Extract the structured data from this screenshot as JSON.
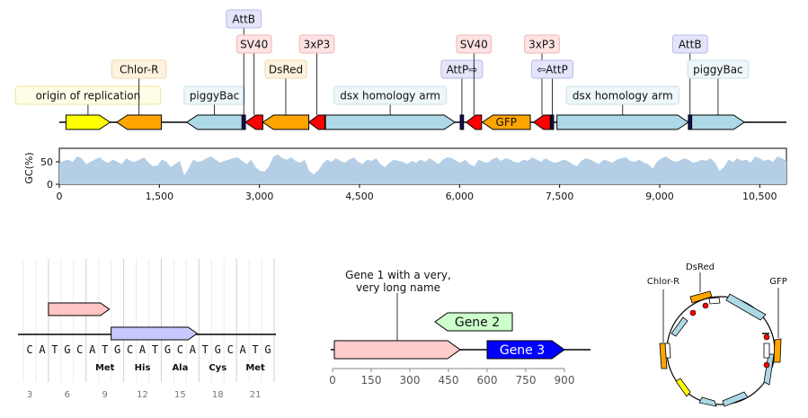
{
  "top_map": {
    "features": [
      {
        "label": "origin of replication",
        "start": 100,
        "end": 760,
        "dir": 1,
        "color": "#ffff00",
        "box_bg": "#fffde6",
        "box_stroke": "#f0e6a0",
        "level": 0
      },
      {
        "label": "Chlor-R",
        "start": 860,
        "end": 1530,
        "dir": -1,
        "color": "#ffa500",
        "box_bg": "#fff3df",
        "box_stroke": "#f0d7a8",
        "level": 1
      },
      {
        "label": "piggyBac",
        "start": 1910,
        "end": 2740,
        "dir": -1,
        "color": "#add8e6",
        "box_bg": "#eef7fa",
        "box_stroke": "#c8e2ea",
        "level": 0
      },
      {
        "label": "AttB",
        "start": 2740,
        "end": 2790,
        "dir": 0,
        "color": "#101060",
        "box_bg": "#e4e4fb",
        "box_stroke": "#b9b9e8",
        "level": 4
      },
      {
        "label": "SV40",
        "start": 2790,
        "end": 3050,
        "dir": -1,
        "color": "#ff0000",
        "box_bg": "#fde3e3",
        "box_stroke": "#f0b7b7",
        "level": 3
      },
      {
        "label": "DsRed",
        "start": 3050,
        "end": 3740,
        "dir": -1,
        "color": "#ffa500",
        "box_bg": "#fff3df",
        "box_stroke": "#f0d7a8",
        "level": 1
      },
      {
        "label": "3xP3",
        "start": 3740,
        "end": 3980,
        "dir": -1,
        "color": "#ff0000",
        "box_bg": "#fde3e3",
        "box_stroke": "#f0b7b7",
        "level": 3
      },
      {
        "label": "dsx homology arm",
        "start": 3990,
        "end": 5930,
        "dir": 1,
        "color": "#add8e6",
        "box_bg": "#eef7fa",
        "box_stroke": "#c8e2ea",
        "level": 0
      },
      {
        "label": "AttP⇨",
        "start": 6010,
        "end": 6060,
        "dir": 0,
        "color": "#101060",
        "box_bg": "#e4e4fb",
        "box_stroke": "#b9b9e8",
        "level": 1
      },
      {
        "label": "SV40",
        "start": 6100,
        "end": 6330,
        "dir": -1,
        "color": "#ff0000",
        "box_bg": "#fde3e3",
        "box_stroke": "#f0b7b7",
        "level": 3
      },
      {
        "label": "GFP",
        "start": 6340,
        "end": 7060,
        "dir": -1,
        "color": "#ffa500",
        "box_bg": "#fff3df",
        "box_stroke": "#f0d7a8",
        "level": -1
      },
      {
        "label": "3xP3",
        "start": 7110,
        "end": 7360,
        "dir": -1,
        "color": "#ff0000",
        "box_bg": "#fde3e3",
        "box_stroke": "#f0b7b7",
        "level": 3
      },
      {
        "label": "⇦AttP",
        "start": 7370,
        "end": 7410,
        "dir": 0,
        "color": "#101060",
        "box_bg": "#e4e4fb",
        "box_stroke": "#b9b9e8",
        "level": 1
      },
      {
        "label": "dsx homology arm",
        "start": 7460,
        "end": 9430,
        "dir": 1,
        "color": "#add8e6",
        "box_bg": "#eef7fa",
        "box_stroke": "#c8e2ea",
        "level": 0
      },
      {
        "label": "AttB",
        "start": 9430,
        "end": 9480,
        "dir": 0,
        "color": "#101060",
        "box_bg": "#e4e4fb",
        "box_stroke": "#b9b9e8",
        "level": 2
      },
      {
        "label": "piggyBac",
        "start": 9480,
        "end": 10270,
        "dir": 1,
        "color": "#add8e6",
        "box_bg": "#eef7fa",
        "box_stroke": "#c8e2ea",
        "level": 1
      }
    ]
  },
  "chart_data": {
    "type": "area",
    "title": "",
    "xlabel": "",
    "ylabel": "GC(%)",
    "xlim": [
      0,
      10900
    ],
    "ylim": [
      0,
      80
    ],
    "xticks": [
      "0",
      "1,500",
      "3,000",
      "4,500",
      "6,000",
      "7,500",
      "9,000",
      "10,500"
    ],
    "yticks": [
      "0",
      "50"
    ],
    "fill_color": "#b4cfe5",
    "gc_percent": [
      48,
      52,
      55,
      50,
      62,
      58,
      45,
      50,
      55,
      60,
      52,
      48,
      55,
      50,
      45,
      58,
      52,
      50,
      55,
      60,
      48,
      40,
      42,
      55,
      50,
      38,
      45,
      52,
      20,
      35,
      55,
      50,
      52,
      58,
      62,
      55,
      48,
      52,
      55,
      58,
      60,
      52,
      45,
      55,
      38,
      30,
      28,
      40,
      62,
      66,
      58,
      55,
      60,
      52,
      48,
      55,
      30,
      22,
      30,
      45,
      55,
      50,
      58,
      52,
      48,
      55,
      60,
      50,
      45,
      55,
      52,
      58,
      45,
      38,
      48,
      55,
      52,
      50,
      45,
      52,
      48,
      55,
      50,
      58,
      52,
      45,
      55,
      60,
      58,
      52,
      48,
      55,
      45,
      40,
      55,
      50,
      48,
      55,
      60,
      52,
      58,
      55,
      50,
      48,
      55,
      52,
      60,
      55,
      50,
      58,
      52,
      48,
      50,
      55,
      52,
      45,
      40,
      52,
      58,
      55,
      50,
      45,
      55,
      52,
      48,
      55,
      58,
      60,
      52,
      50,
      55,
      48,
      45,
      35,
      50,
      58,
      62,
      55,
      50,
      52,
      58,
      55,
      48,
      50,
      55,
      52,
      58,
      48,
      30,
      38,
      55,
      50,
      58,
      52,
      55,
      48,
      62,
      58,
      52,
      55,
      50,
      62,
      58,
      52
    ]
  },
  "seq_panel": {
    "sequence": [
      "C",
      "A",
      "T",
      "G",
      "C",
      "A",
      "T",
      "G",
      "C",
      "A",
      "T",
      "G",
      "C",
      "A",
      "T",
      "G",
      "C",
      "A",
      "T",
      "G"
    ],
    "translation": [
      "Met",
      "His",
      "Ala",
      "Cys",
      "Met"
    ],
    "ticks": [
      "3",
      "6",
      "9",
      "12",
      "15",
      "18",
      "21"
    ],
    "features": [
      {
        "start": 2,
        "end": 6,
        "dir": 1,
        "color": "#ffc4c4",
        "level": 1
      },
      {
        "start": 7,
        "end": 13,
        "dir": 1,
        "color": "#c8c8ff",
        "level": 0
      }
    ]
  },
  "gene_panel": {
    "features": [
      {
        "label": "Gene 1 with a very, very long name",
        "start": 0,
        "end": 500,
        "dir": 1,
        "color": "#ffcccc",
        "text_color": "#111111",
        "level": 0
      },
      {
        "label": "Gene 2",
        "start": 400,
        "end": 700,
        "dir": -1,
        "color": "#ccffcc",
        "text_color": "#111111",
        "level": 1
      },
      {
        "label": "Gene 3",
        "start": 600,
        "end": 900,
        "dir": 1,
        "color": "#0000ff",
        "text_color": "#ffffff",
        "level": 0
      }
    ],
    "ticks": [
      "0",
      "150",
      "300",
      "450",
      "600",
      "750",
      "900"
    ]
  },
  "circular_panel": {
    "labels": [
      "Chlor-R",
      "DsRed",
      "GFP"
    ]
  }
}
